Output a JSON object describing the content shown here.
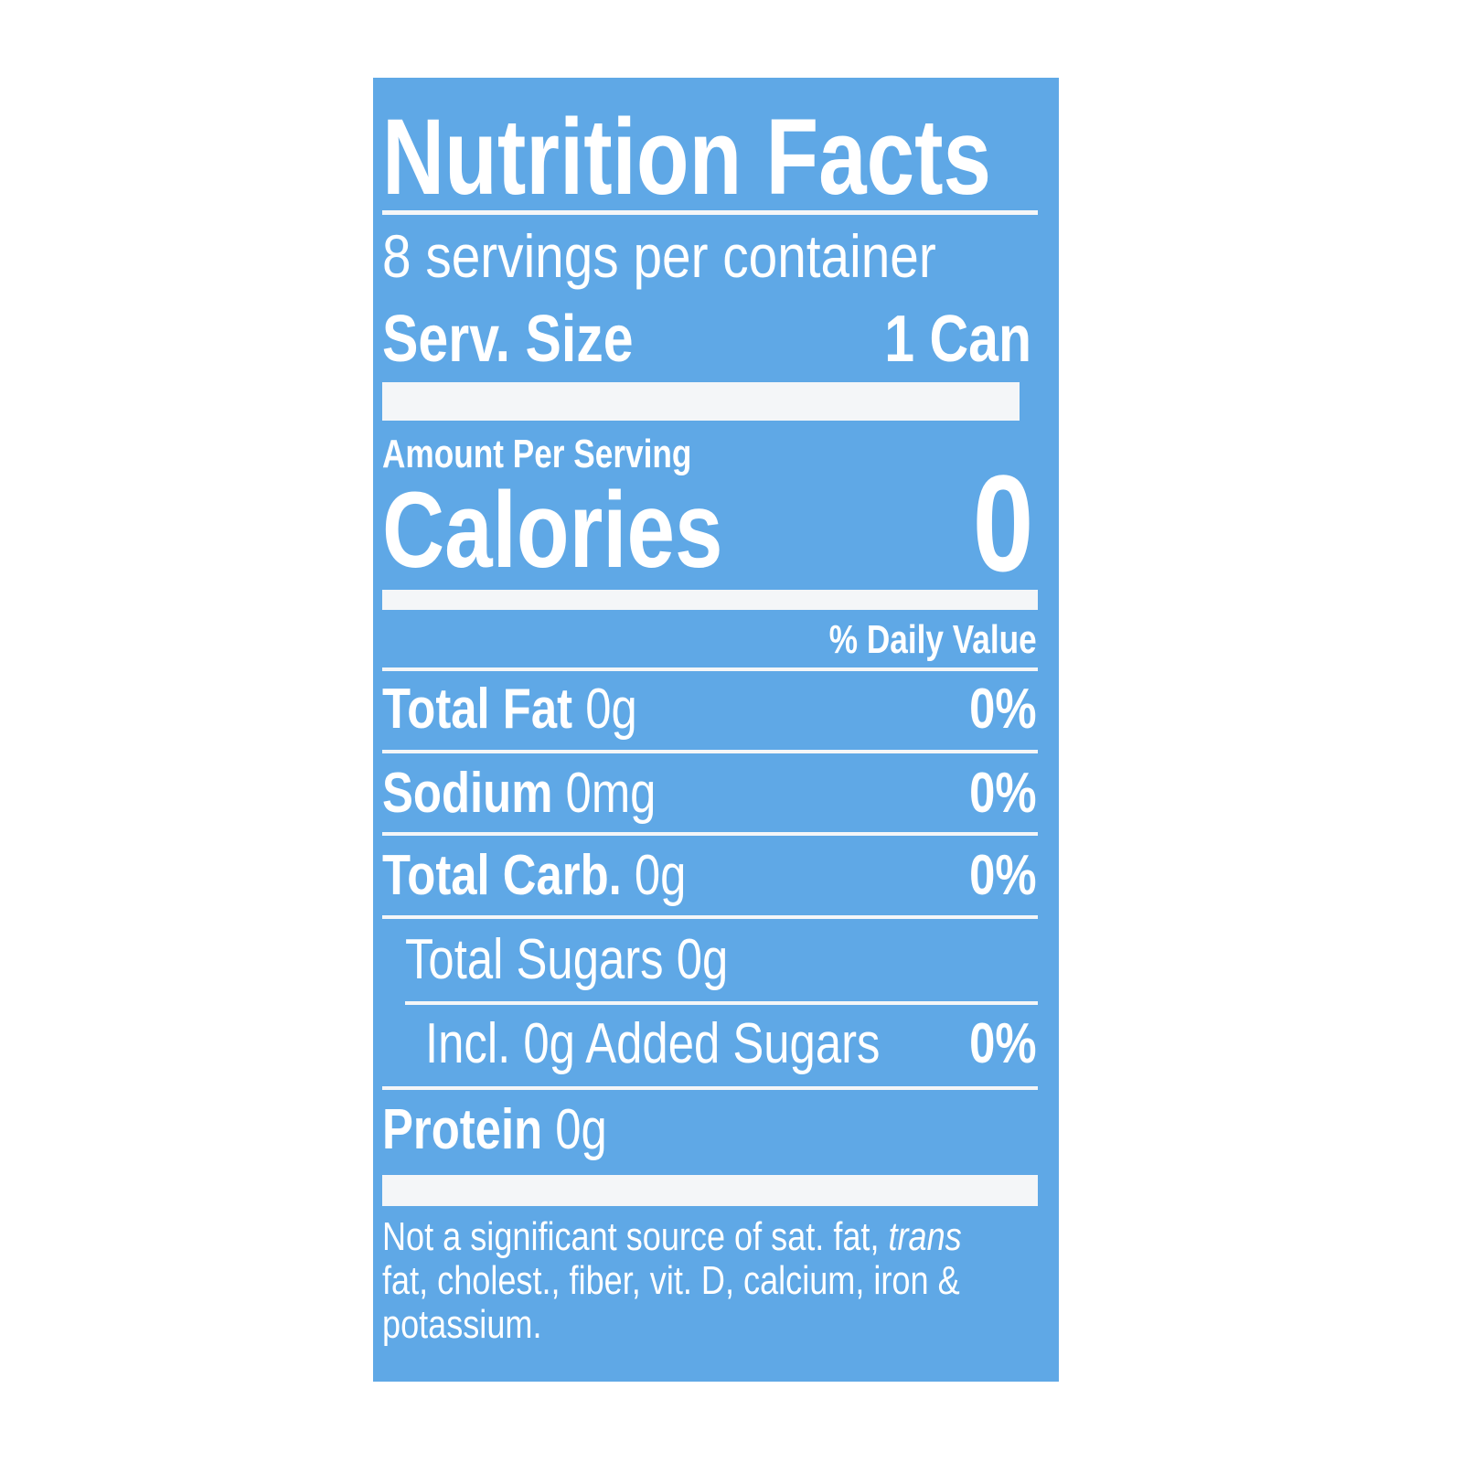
{
  "panel_color": "#5fa8e6",
  "title": "Nutrition Facts",
  "servings_per_container": "8 servings per container",
  "serving_size": {
    "label": "Serv. Size",
    "value": "1 Can"
  },
  "amount_per_serving": "Amount Per Serving",
  "calories": {
    "label": "Calories",
    "value": "0"
  },
  "daily_value_header": "% Daily Value",
  "nutrients": [
    {
      "label": "Total Fat",
      "amount": "0g",
      "dv": "0%"
    },
    {
      "label": "Sodium",
      "amount": "0mg",
      "dv": "0%"
    },
    {
      "label": "Total Carb.",
      "amount": "0g",
      "dv": "0%"
    },
    {
      "label": "Total Sugars 0g",
      "amount": "",
      "dv": ""
    },
    {
      "label": "Incl. 0g Added Sugars",
      "amount": "",
      "dv": "0%"
    },
    {
      "label": "Protein",
      "amount": "0g",
      "dv": ""
    }
  ],
  "footnote": {
    "line1_a": "Not a significant source of sat. fat, ",
    "line1_b": "trans",
    "line2": "fat, cholest., fiber, vit. D, calcium, iron &",
    "line3": "potassium."
  }
}
